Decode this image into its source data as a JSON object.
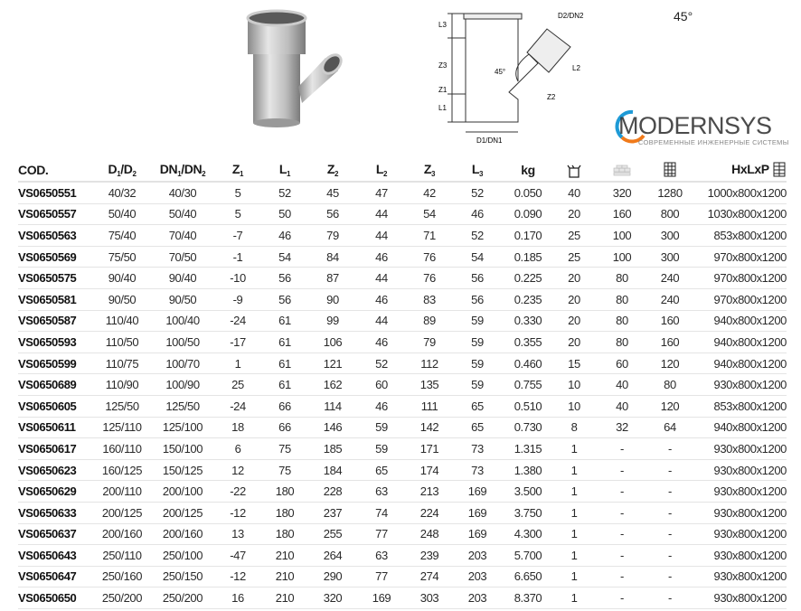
{
  "angle_label": "45°",
  "drawing": {
    "l3": "L3",
    "z3": "Z3",
    "z1": "Z1",
    "l1": "L1",
    "d1": "D1/DN1",
    "d2": "D2/DN2",
    "l2": "L2",
    "z2": "Z2",
    "angle": "45°"
  },
  "table": {
    "headers": {
      "cod": "COD.",
      "d": "D",
      "d_sub1": "1",
      "d_sub2": "2",
      "dn": "DN",
      "dn_sub1": "1",
      "dn_sub2": "2",
      "z1": "Z",
      "z1_sub": "1",
      "l1": "L",
      "l1_sub": "1",
      "z2": "Z",
      "z2_sub": "2",
      "l2": "L",
      "l2_sub": "2",
      "z3": "Z",
      "z3_sub": "3",
      "l3": "L",
      "l3_sub": "3",
      "kg": "kg",
      "dims": "HxLxP",
      "box_icon": "box-icon",
      "pallet_icon": "pallet-layer-icon",
      "stack_icon": "pallet-stack-icon"
    },
    "rows": [
      [
        "VS0650551",
        "40/32",
        "40/30",
        "5",
        "52",
        "45",
        "47",
        "42",
        "52",
        "0.050",
        "40",
        "320",
        "1280",
        "1000x800x1200"
      ],
      [
        "VS0650557",
        "50/40",
        "50/40",
        "5",
        "50",
        "56",
        "44",
        "54",
        "46",
        "0.090",
        "20",
        "160",
        "800",
        "1030x800x1200"
      ],
      [
        "VS0650563",
        "75/40",
        "70/40",
        "-7",
        "46",
        "79",
        "44",
        "71",
        "52",
        "0.170",
        "25",
        "100",
        "300",
        "853x800x1200"
      ],
      [
        "VS0650569",
        "75/50",
        "70/50",
        "-1",
        "54",
        "84",
        "46",
        "76",
        "54",
        "0.185",
        "25",
        "100",
        "300",
        "970x800x1200"
      ],
      [
        "VS0650575",
        "90/40",
        "90/40",
        "-10",
        "56",
        "87",
        "44",
        "76",
        "56",
        "0.225",
        "20",
        "80",
        "240",
        "970x800x1200"
      ],
      [
        "VS0650581",
        "90/50",
        "90/50",
        "-9",
        "56",
        "90",
        "46",
        "83",
        "56",
        "0.235",
        "20",
        "80",
        "240",
        "970x800x1200"
      ],
      [
        "VS0650587",
        "110/40",
        "100/40",
        "-24",
        "61",
        "99",
        "44",
        "89",
        "59",
        "0.330",
        "20",
        "80",
        "160",
        "940x800x1200"
      ],
      [
        "VS0650593",
        "110/50",
        "100/50",
        "-17",
        "61",
        "106",
        "46",
        "79",
        "59",
        "0.355",
        "20",
        "80",
        "160",
        "940x800x1200"
      ],
      [
        "VS0650599",
        "110/75",
        "100/70",
        "1",
        "61",
        "121",
        "52",
        "112",
        "59",
        "0.460",
        "15",
        "60",
        "120",
        "940x800x1200"
      ],
      [
        "VS0650689",
        "110/90",
        "100/90",
        "25",
        "61",
        "162",
        "60",
        "135",
        "59",
        "0.755",
        "10",
        "40",
        "80",
        "930x800x1200"
      ],
      [
        "VS0650605",
        "125/50",
        "125/50",
        "-24",
        "66",
        "114",
        "46",
        "111",
        "65",
        "0.510",
        "10",
        "40",
        "120",
        "853x800x1200"
      ],
      [
        "VS0650611",
        "125/110",
        "125/100",
        "18",
        "66",
        "146",
        "59",
        "142",
        "65",
        "0.730",
        "8",
        "32",
        "64",
        "940x800x1200"
      ],
      [
        "VS0650617",
        "160/110",
        "150/100",
        "6",
        "75",
        "185",
        "59",
        "171",
        "73",
        "1.315",
        "1",
        "-",
        "-",
        "930x800x1200"
      ],
      [
        "VS0650623",
        "160/125",
        "150/125",
        "12",
        "75",
        "184",
        "65",
        "174",
        "73",
        "1.380",
        "1",
        "-",
        "-",
        "930x800x1200"
      ],
      [
        "VS0650629",
        "200/110",
        "200/100",
        "-22",
        "180",
        "228",
        "63",
        "213",
        "169",
        "3.500",
        "1",
        "-",
        "-",
        "930x800x1200"
      ],
      [
        "VS0650633",
        "200/125",
        "200/125",
        "-12",
        "180",
        "237",
        "74",
        "224",
        "169",
        "3.750",
        "1",
        "-",
        "-",
        "930x800x1200"
      ],
      [
        "VS0650637",
        "200/160",
        "200/160",
        "13",
        "180",
        "255",
        "77",
        "248",
        "169",
        "4.300",
        "1",
        "-",
        "-",
        "930x800x1200"
      ],
      [
        "VS0650643",
        "250/110",
        "250/100",
        "-47",
        "210",
        "264",
        "63",
        "239",
        "203",
        "5.700",
        "1",
        "-",
        "-",
        "930x800x1200"
      ],
      [
        "VS0650647",
        "250/160",
        "250/150",
        "-12",
        "210",
        "290",
        "77",
        "274",
        "203",
        "6.650",
        "1",
        "-",
        "-",
        "930x800x1200"
      ],
      [
        "VS0650650",
        "250/200",
        "250/200",
        "16",
        "210",
        "320",
        "169",
        "303",
        "203",
        "8.370",
        "1",
        "-",
        "-",
        "930x800x1200"
      ]
    ]
  },
  "watermark": {
    "brand": "MODERNSYS",
    "tagline": "СОВРЕМЕННЫЕ ИНЖЕНЕРНЫЕ СИСТЕМЫ",
    "accent_blue": "#1e9ad6",
    "accent_orange": "#f07a1a"
  }
}
